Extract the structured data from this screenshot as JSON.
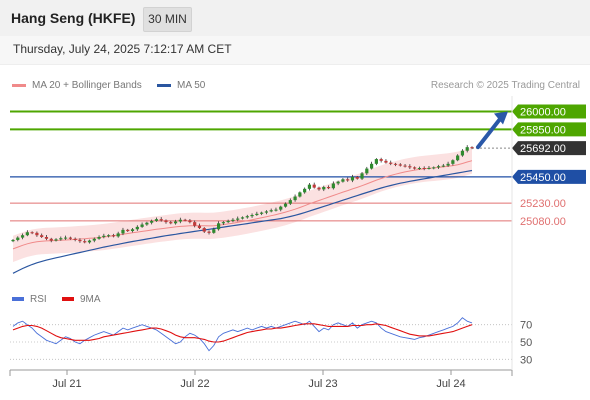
{
  "header": {
    "title": "Hang Seng (HKFE)",
    "timeframe": "30 MIN"
  },
  "datetime": "Thursday, July 24, 2025 7:12:17 AM CET",
  "legend": {
    "ma20": {
      "label": "MA 20 + Bollinger Bands",
      "color": "#f08a8a"
    },
    "ma50": {
      "label": "MA 50",
      "color": "#2a56a0"
    }
  },
  "credit": "Research © 2025 Trading Central",
  "colors": {
    "resistance": "#4ea600",
    "support": "#1f4fa5",
    "weak_support": "#e07070",
    "candle_up": "#2f8a2f",
    "candle_down": "#c03a3a",
    "arrow": "#2a58a8",
    "current_tag": "#333333",
    "rsi": "#4a70d8",
    "rsi_ma": "#e01010"
  },
  "chart_data": [
    {
      "type": "candlestick",
      "panel": "price",
      "x_ticks": [
        "Jul 21",
        "Jul 22",
        "Jul 23",
        "Jul 24"
      ],
      "ylim": [
        24550,
        26130
      ],
      "levels": [
        {
          "value": 26000,
          "label": "26000.00",
          "kind": "resistance"
        },
        {
          "value": 25850,
          "label": "25850.00",
          "kind": "resistance"
        },
        {
          "value": 25692,
          "label": "25692.00",
          "kind": "current"
        },
        {
          "value": 25450,
          "label": "25450.00",
          "kind": "support"
        },
        {
          "value": 25230,
          "label": "25230.00",
          "kind": "weak_support"
        },
        {
          "value": 25080,
          "label": "25080.00",
          "kind": "weak_support"
        }
      ],
      "close": [
        24920,
        24940,
        24960,
        24985,
        24980,
        24960,
        24945,
        24930,
        24915,
        24925,
        24935,
        24940,
        24930,
        24920,
        24910,
        24900,
        24915,
        24930,
        24945,
        24955,
        24960,
        24950,
        24975,
        25005,
        24995,
        25010,
        25030,
        25050,
        25065,
        25080,
        25095,
        25085,
        25070,
        25060,
        25075,
        25090,
        25085,
        25070,
        25040,
        25020,
        24990,
        24980,
        25010,
        25060,
        25070,
        25080,
        25090,
        25100,
        25110,
        25120,
        25130,
        25140,
        25150,
        25160,
        25170,
        25175,
        25200,
        25225,
        25255,
        25285,
        25320,
        25350,
        25385,
        25360,
        25345,
        25365,
        25355,
        25395,
        25410,
        25430,
        25420,
        25450,
        25435,
        25480,
        25520,
        25560,
        25600,
        25585,
        25570,
        25560,
        25555,
        25545,
        25540,
        25530,
        25520,
        25525,
        25520,
        25525,
        25530,
        25540,
        25545,
        25560,
        25590,
        25630,
        25670,
        25700,
        25692
      ],
      "ma20": [
        24845,
        24860,
        24875,
        24888,
        24898,
        24905,
        24910,
        24912,
        24914,
        24916,
        24918,
        24920,
        24922,
        24925,
        24928,
        24931,
        24934,
        24937,
        24941,
        24945,
        24950,
        24956,
        24962,
        24968,
        24974,
        24980,
        24986,
        24992,
        24998,
        25004,
        25010,
        25015,
        25020,
        25025,
        25030,
        25034,
        25037,
        25039,
        25040,
        25040,
        25039,
        25038,
        25040,
        25044,
        25049,
        25055,
        25061,
        25068,
        25075,
        25082,
        25090,
        25098,
        25106,
        25115,
        25124,
        25133,
        25143,
        25154,
        25166,
        25179,
        25193,
        25208,
        25224,
        25238,
        25252,
        25266,
        25280,
        25294,
        25308,
        25322,
        25335,
        25349,
        25362,
        25376,
        25391,
        25407,
        25423,
        25437,
        25450,
        25462,
        25473,
        25483,
        25492,
        25500,
        25507,
        25513,
        25518,
        25522,
        25526,
        25530,
        25534,
        25539,
        25545,
        25553,
        25563,
        25575,
        25586
      ],
      "ma50": [
        24640,
        24660,
        24680,
        24698,
        24714,
        24728,
        24740,
        24751,
        24761,
        24770,
        24779,
        24788,
        24797,
        24806,
        24815,
        24824,
        24833,
        24842,
        24851,
        24860,
        24868,
        24876,
        24884,
        24892,
        24900,
        24907,
        24914,
        24921,
        24928,
        24935,
        24942,
        24949,
        24956,
        24962,
        24968,
        24974,
        24980,
        24986,
        24992,
        24998,
        25004,
        25010,
        25016,
        25022,
        25028,
        25034,
        25040,
        25046,
        25052,
        25058,
        25064,
        25070,
        25076,
        25082,
        25088,
        25094,
        25100,
        25108,
        25117,
        25127,
        25138,
        25150,
        25163,
        25176,
        25189,
        25202,
        25215,
        25228,
        25241,
        25254,
        25267,
        25280,
        25293,
        25306,
        25319,
        25332,
        25345,
        25357,
        25368,
        25378,
        25388,
        25397,
        25405,
        25413,
        25420,
        25427,
        25434,
        25441,
        25448,
        25455,
        25462,
        25469,
        25476,
        25483,
        25490,
        25497,
        25504
      ],
      "bollinger_width": 110,
      "projection": {
        "from": 25700,
        "to": 26000
      }
    },
    {
      "type": "line",
      "panel": "rsi",
      "series": [
        {
          "name": "RSI",
          "values": [
            68,
            72,
            74,
            70,
            66,
            60,
            56,
            52,
            50,
            48,
            52,
            56,
            54,
            50,
            48,
            52,
            55,
            58,
            60,
            62,
            60,
            58,
            62,
            66,
            64,
            66,
            68,
            70,
            68,
            66,
            64,
            60,
            56,
            52,
            48,
            50,
            56,
            60,
            58,
            54,
            48,
            40,
            46,
            56,
            60,
            62,
            64,
            62,
            64,
            66,
            64,
            66,
            68,
            66,
            68,
            66,
            68,
            70,
            72,
            74,
            72,
            70,
            74,
            68,
            62,
            66,
            64,
            70,
            72,
            70,
            68,
            72,
            66,
            70,
            72,
            74,
            72,
            66,
            62,
            60,
            58,
            56,
            55,
            54,
            53,
            55,
            56,
            58,
            60,
            62,
            64,
            66,
            68,
            72,
            78,
            74,
            72
          ]
        },
        {
          "name": "9MA",
          "values": [
            64,
            66,
            68,
            69,
            69,
            68,
            66,
            63,
            60,
            57,
            55,
            54,
            53,
            52,
            52,
            52,
            52,
            53,
            54,
            56,
            57,
            58,
            59,
            60,
            61,
            62,
            63,
            64,
            65,
            66,
            66,
            65,
            63,
            61,
            58,
            56,
            55,
            55,
            55,
            54,
            53,
            51,
            50,
            50,
            51,
            53,
            55,
            57,
            59,
            61,
            62,
            63,
            64,
            65,
            65,
            66,
            66,
            67,
            68,
            69,
            70,
            71,
            71,
            71,
            70,
            69,
            68,
            68,
            68,
            68,
            68,
            69,
            69,
            69,
            70,
            70,
            71,
            70,
            69,
            67,
            65,
            63,
            61,
            59,
            58,
            57,
            57,
            57,
            58,
            59,
            60,
            61,
            62,
            64,
            66,
            68,
            70
          ]
        }
      ],
      "ylim": [
        20,
        80
      ],
      "y_ticks": [
        "70",
        "50",
        "30"
      ]
    }
  ]
}
